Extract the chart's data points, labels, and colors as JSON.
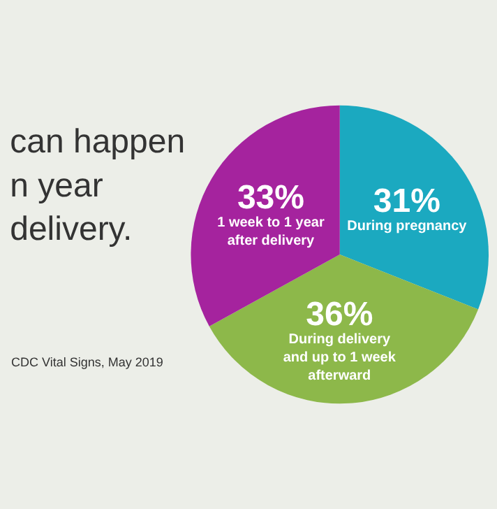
{
  "chart_data": {
    "type": "pie",
    "title": "can happen\nn year\ndelivery.",
    "categories": [
      "During pregnancy",
      "During delivery and up to 1 week afterward",
      "1 week to 1 year after delivery"
    ],
    "values": [
      31,
      36,
      33
    ],
    "value_labels": [
      "31%",
      "36%",
      "33%"
    ],
    "colors": [
      "#1ba9c0",
      "#8db84a",
      "#a5239e"
    ],
    "annotations": [
      "CDC Vital Signs, May 2019"
    ],
    "legend": false
  }
}
